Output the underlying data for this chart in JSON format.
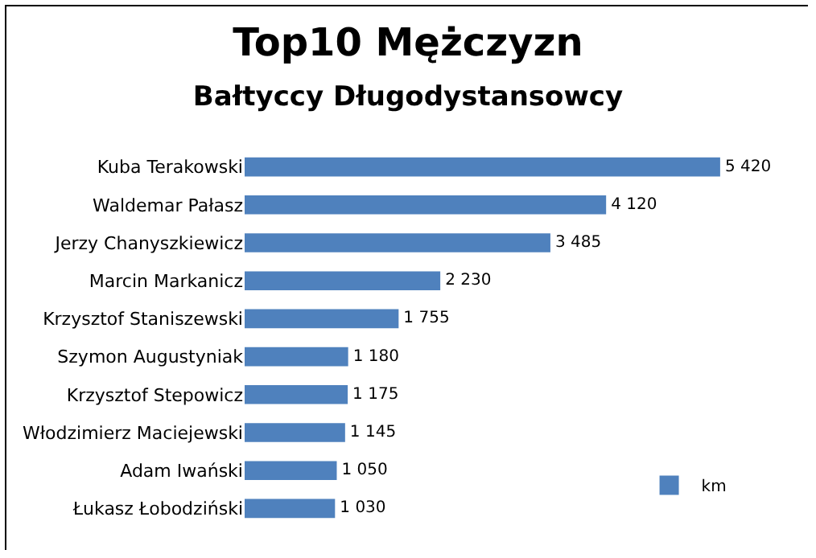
{
  "chart_data": {
    "type": "bar",
    "orientation": "horizontal",
    "title": "Top10 Mężczyzn",
    "subtitle": "Bałtyccy Długodystansowcy",
    "categories": [
      "Kuba Terakowski",
      "Waldemar Pałasz",
      "Jerzy Chanyszkiewicz",
      "Marcin Markanicz",
      "Krzysztof Staniszewski",
      "Szymon Augustyniak",
      "Krzysztof Stepowicz",
      "Włodzimierz Maciejewski",
      "Adam Iwański",
      "Łukasz Łobodziński"
    ],
    "series": [
      {
        "name": "km",
        "color": "#4f81bd",
        "values": [
          5420,
          4120,
          3485,
          2230,
          1755,
          1180,
          1175,
          1145,
          1050,
          1030
        ],
        "value_labels": [
          "5 420",
          "4 120",
          "3 485",
          "2 230",
          "1 755",
          "1 180",
          "1 175",
          "1 145",
          "1 050",
          "1 030"
        ]
      }
    ],
    "tick_labels": "y",
    "grid": false,
    "legend": "bottom right"
  }
}
